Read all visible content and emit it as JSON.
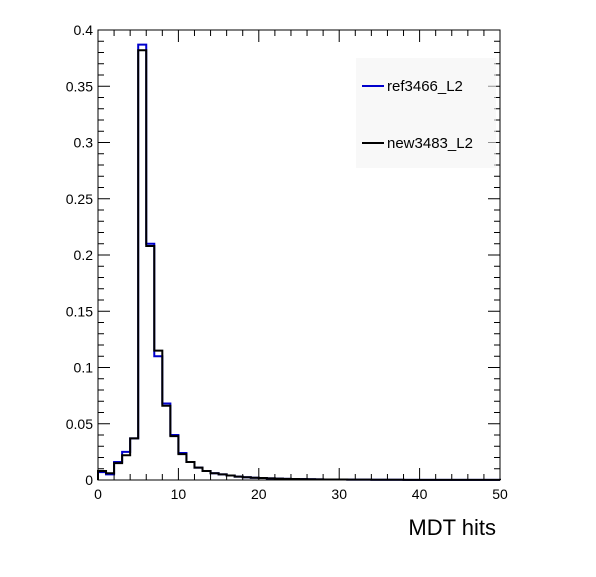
{
  "chart_data": {
    "type": "line",
    "title": "",
    "xlabel": "MDT hits",
    "ylabel": "",
    "xlim": [
      0,
      50
    ],
    "ylim": [
      0,
      0.4
    ],
    "grid": false,
    "legend_position": "top-right",
    "bin_width": 1,
    "x_ticks": [
      "0",
      "10",
      "20",
      "30",
      "40",
      "50"
    ],
    "y_ticks": [
      "0",
      "0.05",
      "0.1",
      "0.15",
      "0.2",
      "0.25",
      "0.3",
      "0.35",
      "0.4"
    ],
    "series": [
      {
        "name": "ref3466_L2",
        "color": "#0000cc",
        "values": [
          0.007,
          0.005,
          0.016,
          0.025,
          0.037,
          0.387,
          0.21,
          0.11,
          0.068,
          0.04,
          0.024,
          0.016,
          0.011,
          0.008,
          0.006,
          0.005,
          0.004,
          0.003,
          0.0025,
          0.002,
          0.0018,
          0.0015,
          0.0012,
          0.001,
          0.0009,
          0.0008,
          0.0007,
          0.0006,
          0.0005,
          0.0004,
          0.0004,
          0.0003,
          0.0003,
          0.0003,
          0.0002,
          0.0002,
          0.0002,
          0.0002,
          0.0001,
          0.0001,
          0.0001,
          0.0001,
          0.0001,
          0.0001,
          0.0001,
          0.0001,
          0.0001,
          0.0001,
          0.0001,
          0.0001
        ]
      },
      {
        "name": "new3483_L2",
        "color": "#000000",
        "values": [
          0.008,
          0.006,
          0.015,
          0.022,
          0.037,
          0.382,
          0.208,
          0.115,
          0.066,
          0.039,
          0.023,
          0.016,
          0.011,
          0.008,
          0.006,
          0.005,
          0.004,
          0.003,
          0.0025,
          0.002,
          0.0018,
          0.0015,
          0.0012,
          0.001,
          0.0009,
          0.0008,
          0.0007,
          0.0006,
          0.0005,
          0.0004,
          0.0004,
          0.0003,
          0.0003,
          0.0003,
          0.0002,
          0.0002,
          0.0002,
          0.0002,
          0.0001,
          0.0001,
          0.0001,
          0.0001,
          0.0001,
          0.0001,
          0.0001,
          0.0001,
          0.0001,
          0.0001,
          0.0001,
          0.0001
        ]
      }
    ]
  }
}
